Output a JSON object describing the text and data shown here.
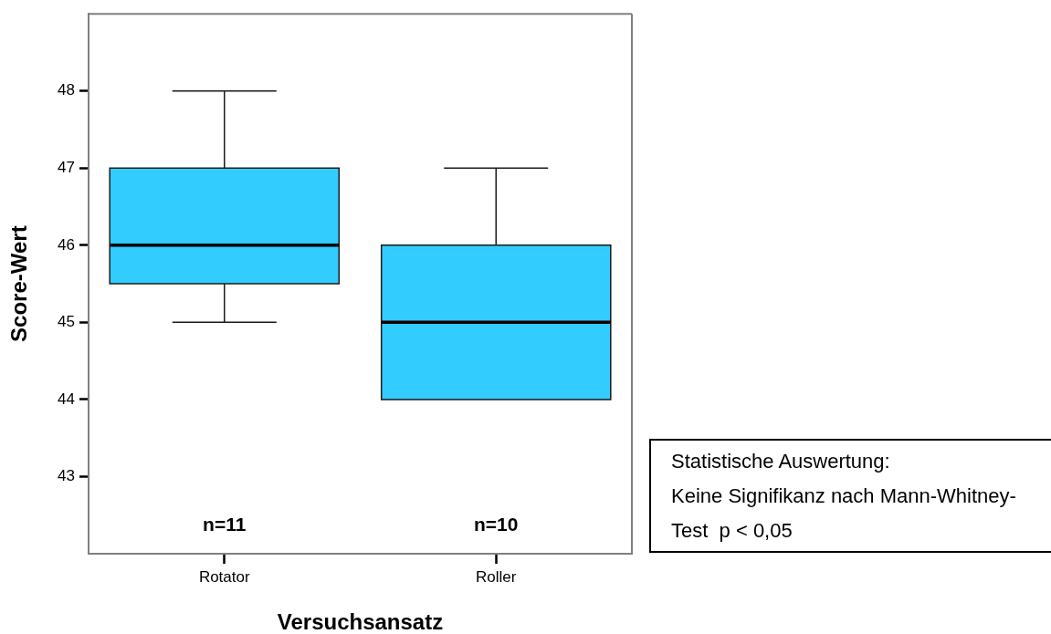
{
  "chart_data": {
    "type": "box",
    "xlabel": "Versuchsansatz",
    "ylabel": "Score-Wert",
    "categories": [
      "Rotator",
      "Roller"
    ],
    "series": [
      {
        "color": "#33ccff",
        "boxes": [
          {
            "low": 45,
            "q1": 45.5,
            "median": 46,
            "q3": 47,
            "high": 48
          },
          {
            "low": 44,
            "q1": 44,
            "median": 45,
            "q3": 46,
            "high": 47
          }
        ]
      }
    ],
    "ylim": [
      42,
      49
    ],
    "yticks": [
      43,
      44,
      45,
      46,
      47,
      48
    ],
    "annotations": [
      "n=11",
      "n=10",
      "Statistische Auswertung:\nKeine Signifikanz nach Mann-Whitney-\nTest  p < 0,05"
    ]
  }
}
